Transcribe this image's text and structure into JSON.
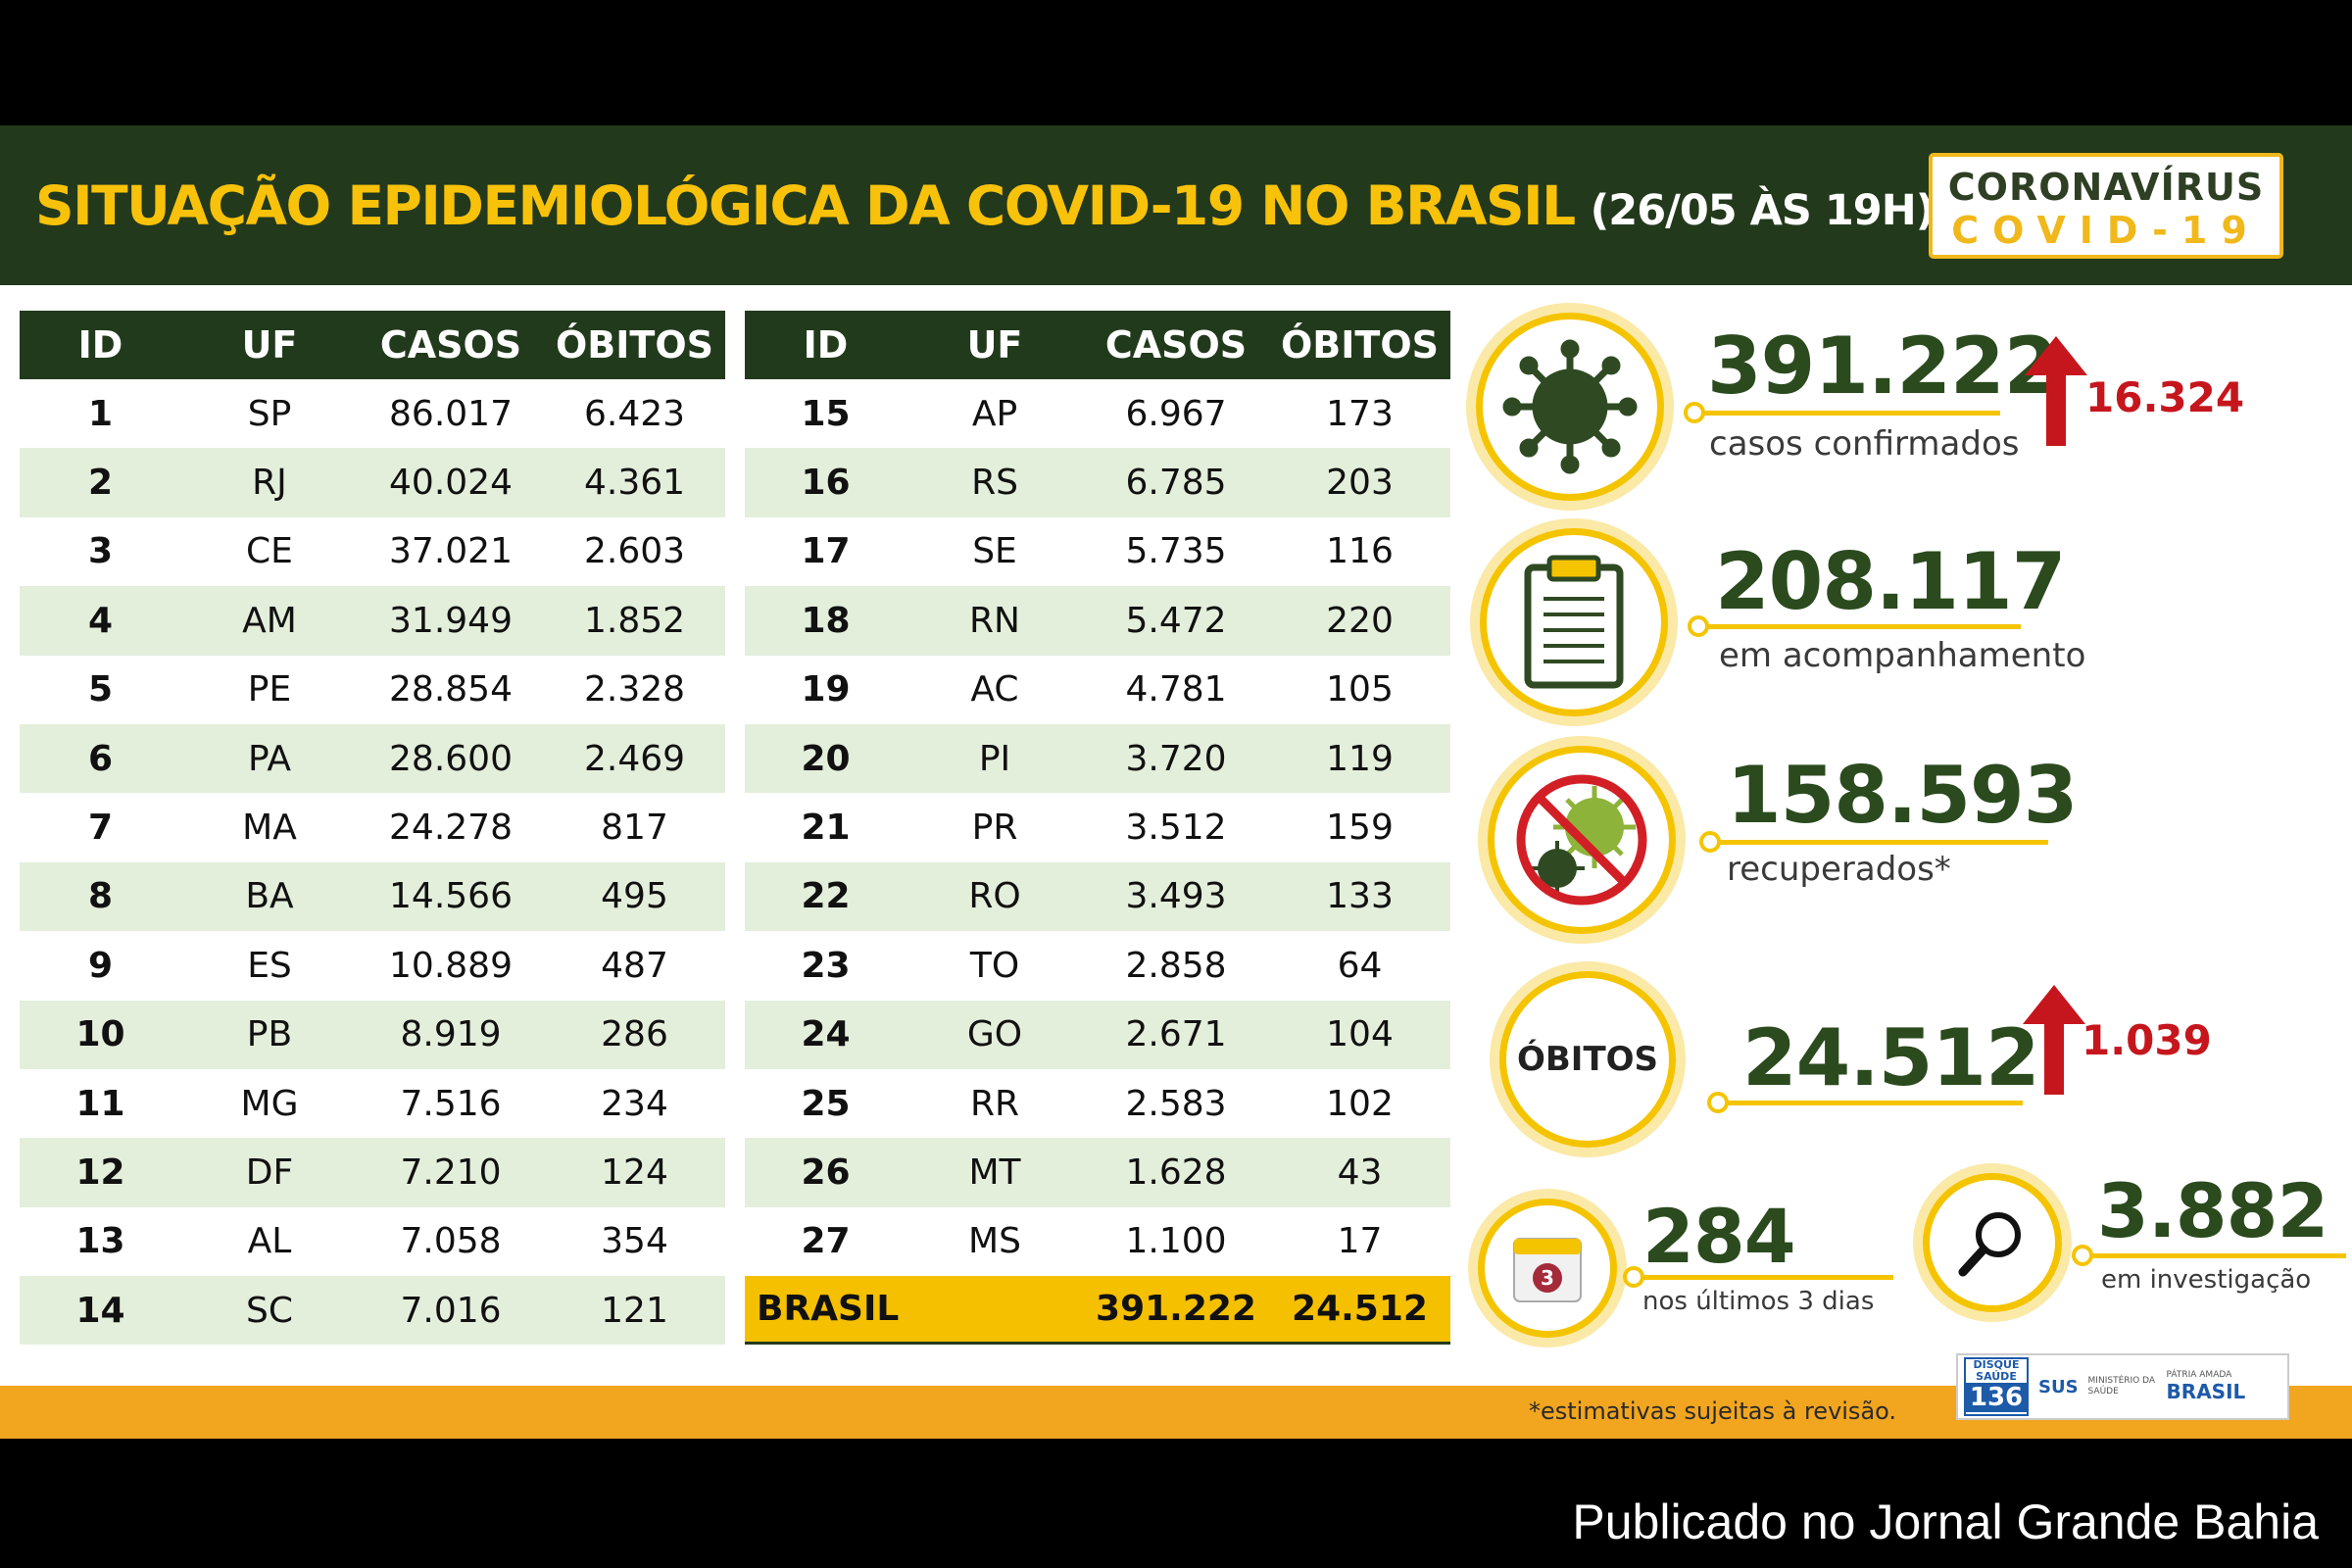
{
  "header": {
    "title": "SITUAÇÃO EPIDEMIOLÓGICA DA COVID-19 NO BRASIL",
    "date": "(26/05 ÀS 19H)",
    "badge_line1": "CORONAVÍRUS",
    "badge_line2": "COVID-19"
  },
  "table_headers": {
    "id": "ID",
    "uf": "UF",
    "casos": "CASOS",
    "obitos": "ÓBITOS"
  },
  "table_left": [
    {
      "id": "1",
      "uf": "SP",
      "casos": "86.017",
      "obitos": "6.423"
    },
    {
      "id": "2",
      "uf": "RJ",
      "casos": "40.024",
      "obitos": "4.361"
    },
    {
      "id": "3",
      "uf": "CE",
      "casos": "37.021",
      "obitos": "2.603"
    },
    {
      "id": "4",
      "uf": "AM",
      "casos": "31.949",
      "obitos": "1.852"
    },
    {
      "id": "5",
      "uf": "PE",
      "casos": "28.854",
      "obitos": "2.328"
    },
    {
      "id": "6",
      "uf": "PA",
      "casos": "28.600",
      "obitos": "2.469"
    },
    {
      "id": "7",
      "uf": "MA",
      "casos": "24.278",
      "obitos": "817"
    },
    {
      "id": "8",
      "uf": "BA",
      "casos": "14.566",
      "obitos": "495"
    },
    {
      "id": "9",
      "uf": "ES",
      "casos": "10.889",
      "obitos": "487"
    },
    {
      "id": "10",
      "uf": "PB",
      "casos": "8.919",
      "obitos": "286"
    },
    {
      "id": "11",
      "uf": "MG",
      "casos": "7.516",
      "obitos": "234"
    },
    {
      "id": "12",
      "uf": "DF",
      "casos": "7.210",
      "obitos": "124"
    },
    {
      "id": "13",
      "uf": "AL",
      "casos": "7.058",
      "obitos": "354"
    },
    {
      "id": "14",
      "uf": "SC",
      "casos": "7.016",
      "obitos": "121"
    }
  ],
  "table_right": [
    {
      "id": "15",
      "uf": "AP",
      "casos": "6.967",
      "obitos": "173"
    },
    {
      "id": "16",
      "uf": "RS",
      "casos": "6.785",
      "obitos": "203"
    },
    {
      "id": "17",
      "uf": "SE",
      "casos": "5.735",
      "obitos": "116"
    },
    {
      "id": "18",
      "uf": "RN",
      "casos": "5.472",
      "obitos": "220"
    },
    {
      "id": "19",
      "uf": "AC",
      "casos": "4.781",
      "obitos": "105"
    },
    {
      "id": "20",
      "uf": "PI",
      "casos": "3.720",
      "obitos": "119"
    },
    {
      "id": "21",
      "uf": "PR",
      "casos": "3.512",
      "obitos": "159"
    },
    {
      "id": "22",
      "uf": "RO",
      "casos": "3.493",
      "obitos": "133"
    },
    {
      "id": "23",
      "uf": "TO",
      "casos": "2.858",
      "obitos": "64"
    },
    {
      "id": "24",
      "uf": "GO",
      "casos": "2.671",
      "obitos": "104"
    },
    {
      "id": "25",
      "uf": "RR",
      "casos": "2.583",
      "obitos": "102"
    },
    {
      "id": "26",
      "uf": "MT",
      "casos": "1.628",
      "obitos": "43"
    },
    {
      "id": "27",
      "uf": "MS",
      "casos": "1.100",
      "obitos": "17"
    }
  ],
  "total": {
    "label": "BRASIL",
    "casos": "391.222",
    "obitos": "24.512"
  },
  "stats": {
    "confirmed": {
      "value": "391.222",
      "label": "casos confirmados",
      "delta": "16.324"
    },
    "monitoring": {
      "value": "208.117",
      "label": "em acompanhamento"
    },
    "recovered": {
      "value": "158.593",
      "label": "recuperados*"
    },
    "deaths": {
      "circle_label": "ÓBITOS",
      "value": "24.512",
      "delta": "1.039"
    },
    "last3days": {
      "value": "284",
      "label": "nos últimos 3 dias",
      "calendar_number": "3"
    },
    "investigation": {
      "value": "3.882",
      "label": "em investigação"
    }
  },
  "footer": {
    "note": "*estimativas sujeitas à revisão.",
    "disque_top": "DISQUE",
    "disque_mid": "SAÚDE",
    "disque_number": "136",
    "sus": "SUS",
    "ministerio": "MINISTÉRIO DA SAÚDE",
    "brasil_tagline": "PÁTRIA AMADA",
    "brasil": "BRASIL"
  },
  "published": "Publicado no Jornal Grande Bahia",
  "colors": {
    "dark_green": "#223a1c",
    "yellow": "#f5c400",
    "light_green_row": "#e3efdb",
    "delta_red": "#c6161d",
    "footer_orange": "#f2a51f"
  },
  "icons": [
    "virus-icon",
    "clipboard-icon",
    "no-virus-icon",
    "calendar-icon",
    "magnifier-icon",
    "up-arrow-icon"
  ]
}
